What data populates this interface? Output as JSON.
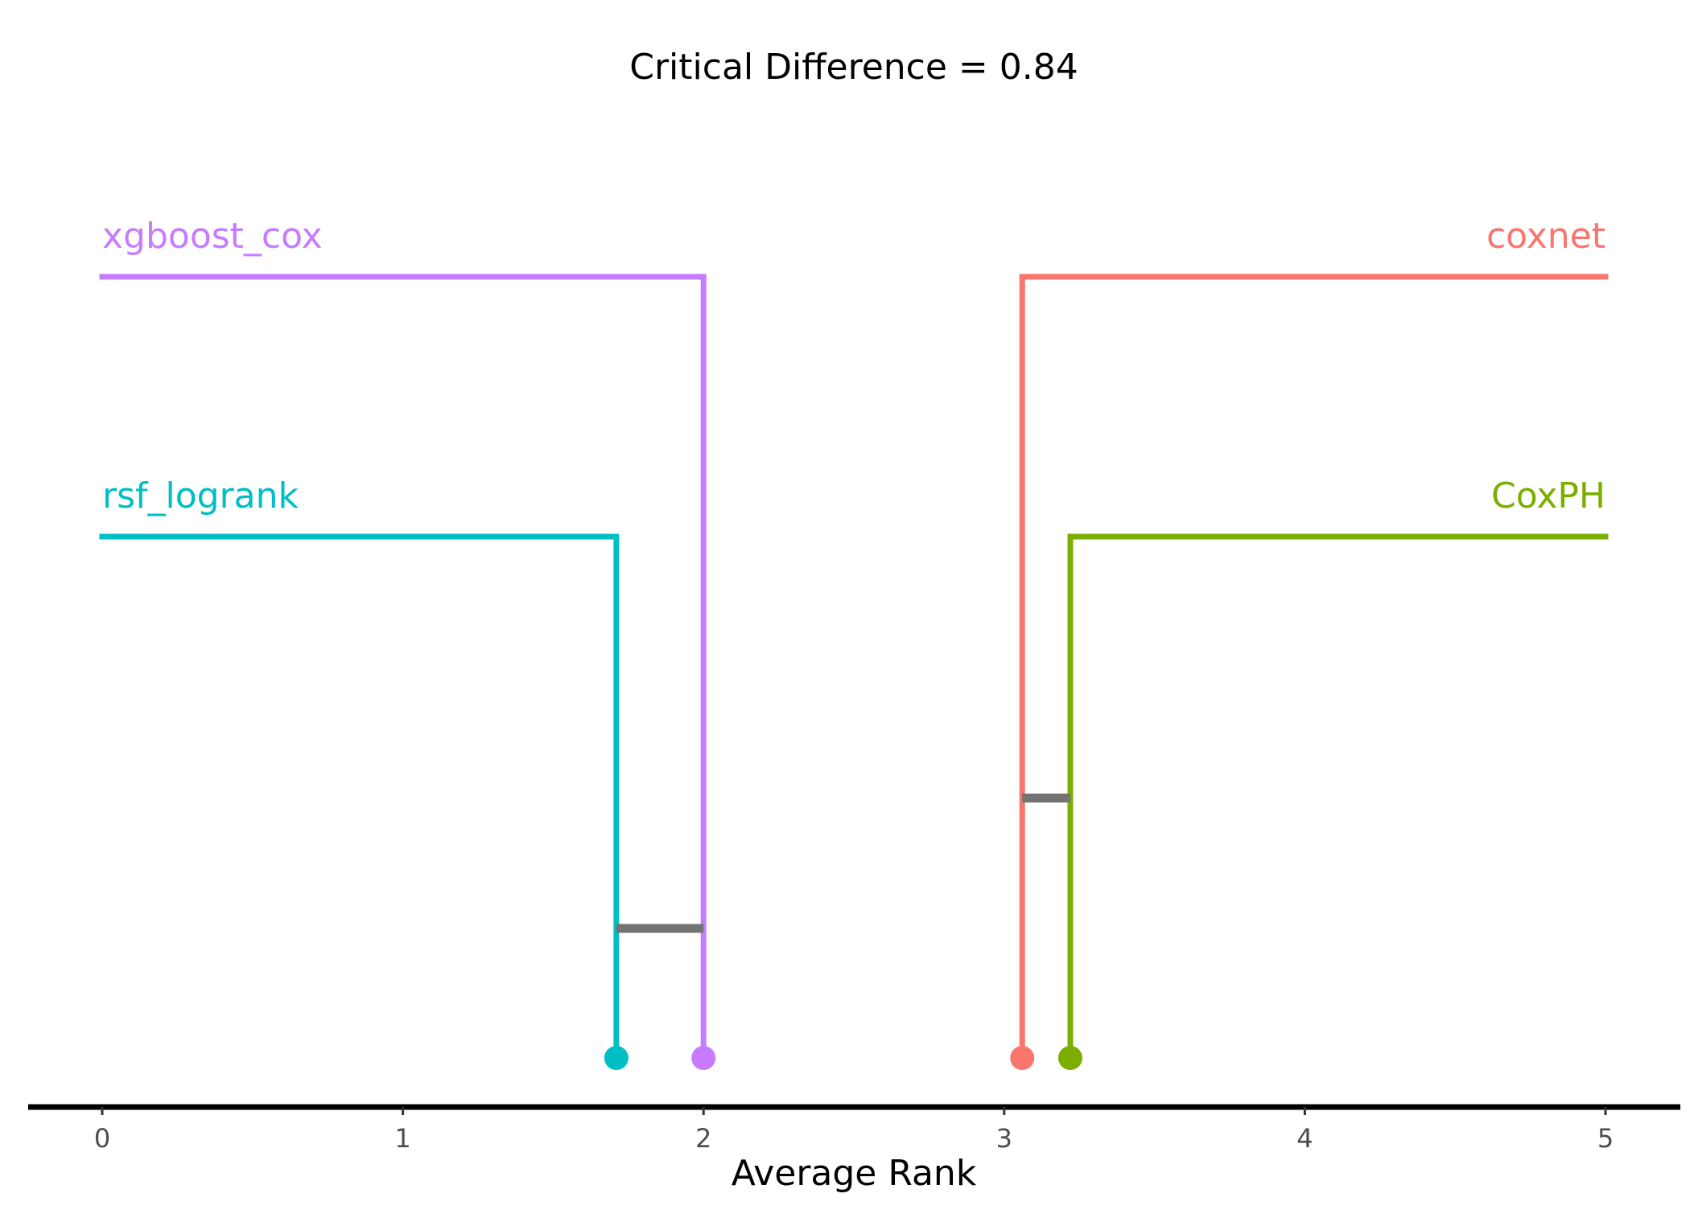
{
  "chart_data": {
    "type": "critical-difference",
    "title": "Critical Difference = 0.84",
    "xlabel": "Average Rank",
    "xlim": [
      -0.25,
      5.25
    ],
    "ticks": [
      0,
      1,
      2,
      3,
      4,
      5
    ],
    "tick_labels": [
      "0",
      "1",
      "2",
      "3",
      "4",
      "5"
    ],
    "critical_difference": 0.84,
    "grid": false,
    "methods": [
      {
        "name": "xgboost_cox",
        "rank": 2.0,
        "color": "#C77CFF",
        "side": "left",
        "level": 1
      },
      {
        "name": "rsf_logrank",
        "rank": 1.71,
        "color": "#00BFC4",
        "side": "left",
        "level": 2
      },
      {
        "name": "coxnet",
        "rank": 3.06,
        "color": "#F8766D",
        "side": "right",
        "level": 1
      },
      {
        "name": "CoxPH",
        "rank": 3.22,
        "color": "#7CAE00",
        "side": "right",
        "level": 2
      }
    ],
    "cliques": [
      {
        "from": 3.06,
        "to": 3.22,
        "color": "#737373"
      },
      {
        "from": 1.71,
        "to": 2.0,
        "color": "#737373"
      }
    ]
  }
}
